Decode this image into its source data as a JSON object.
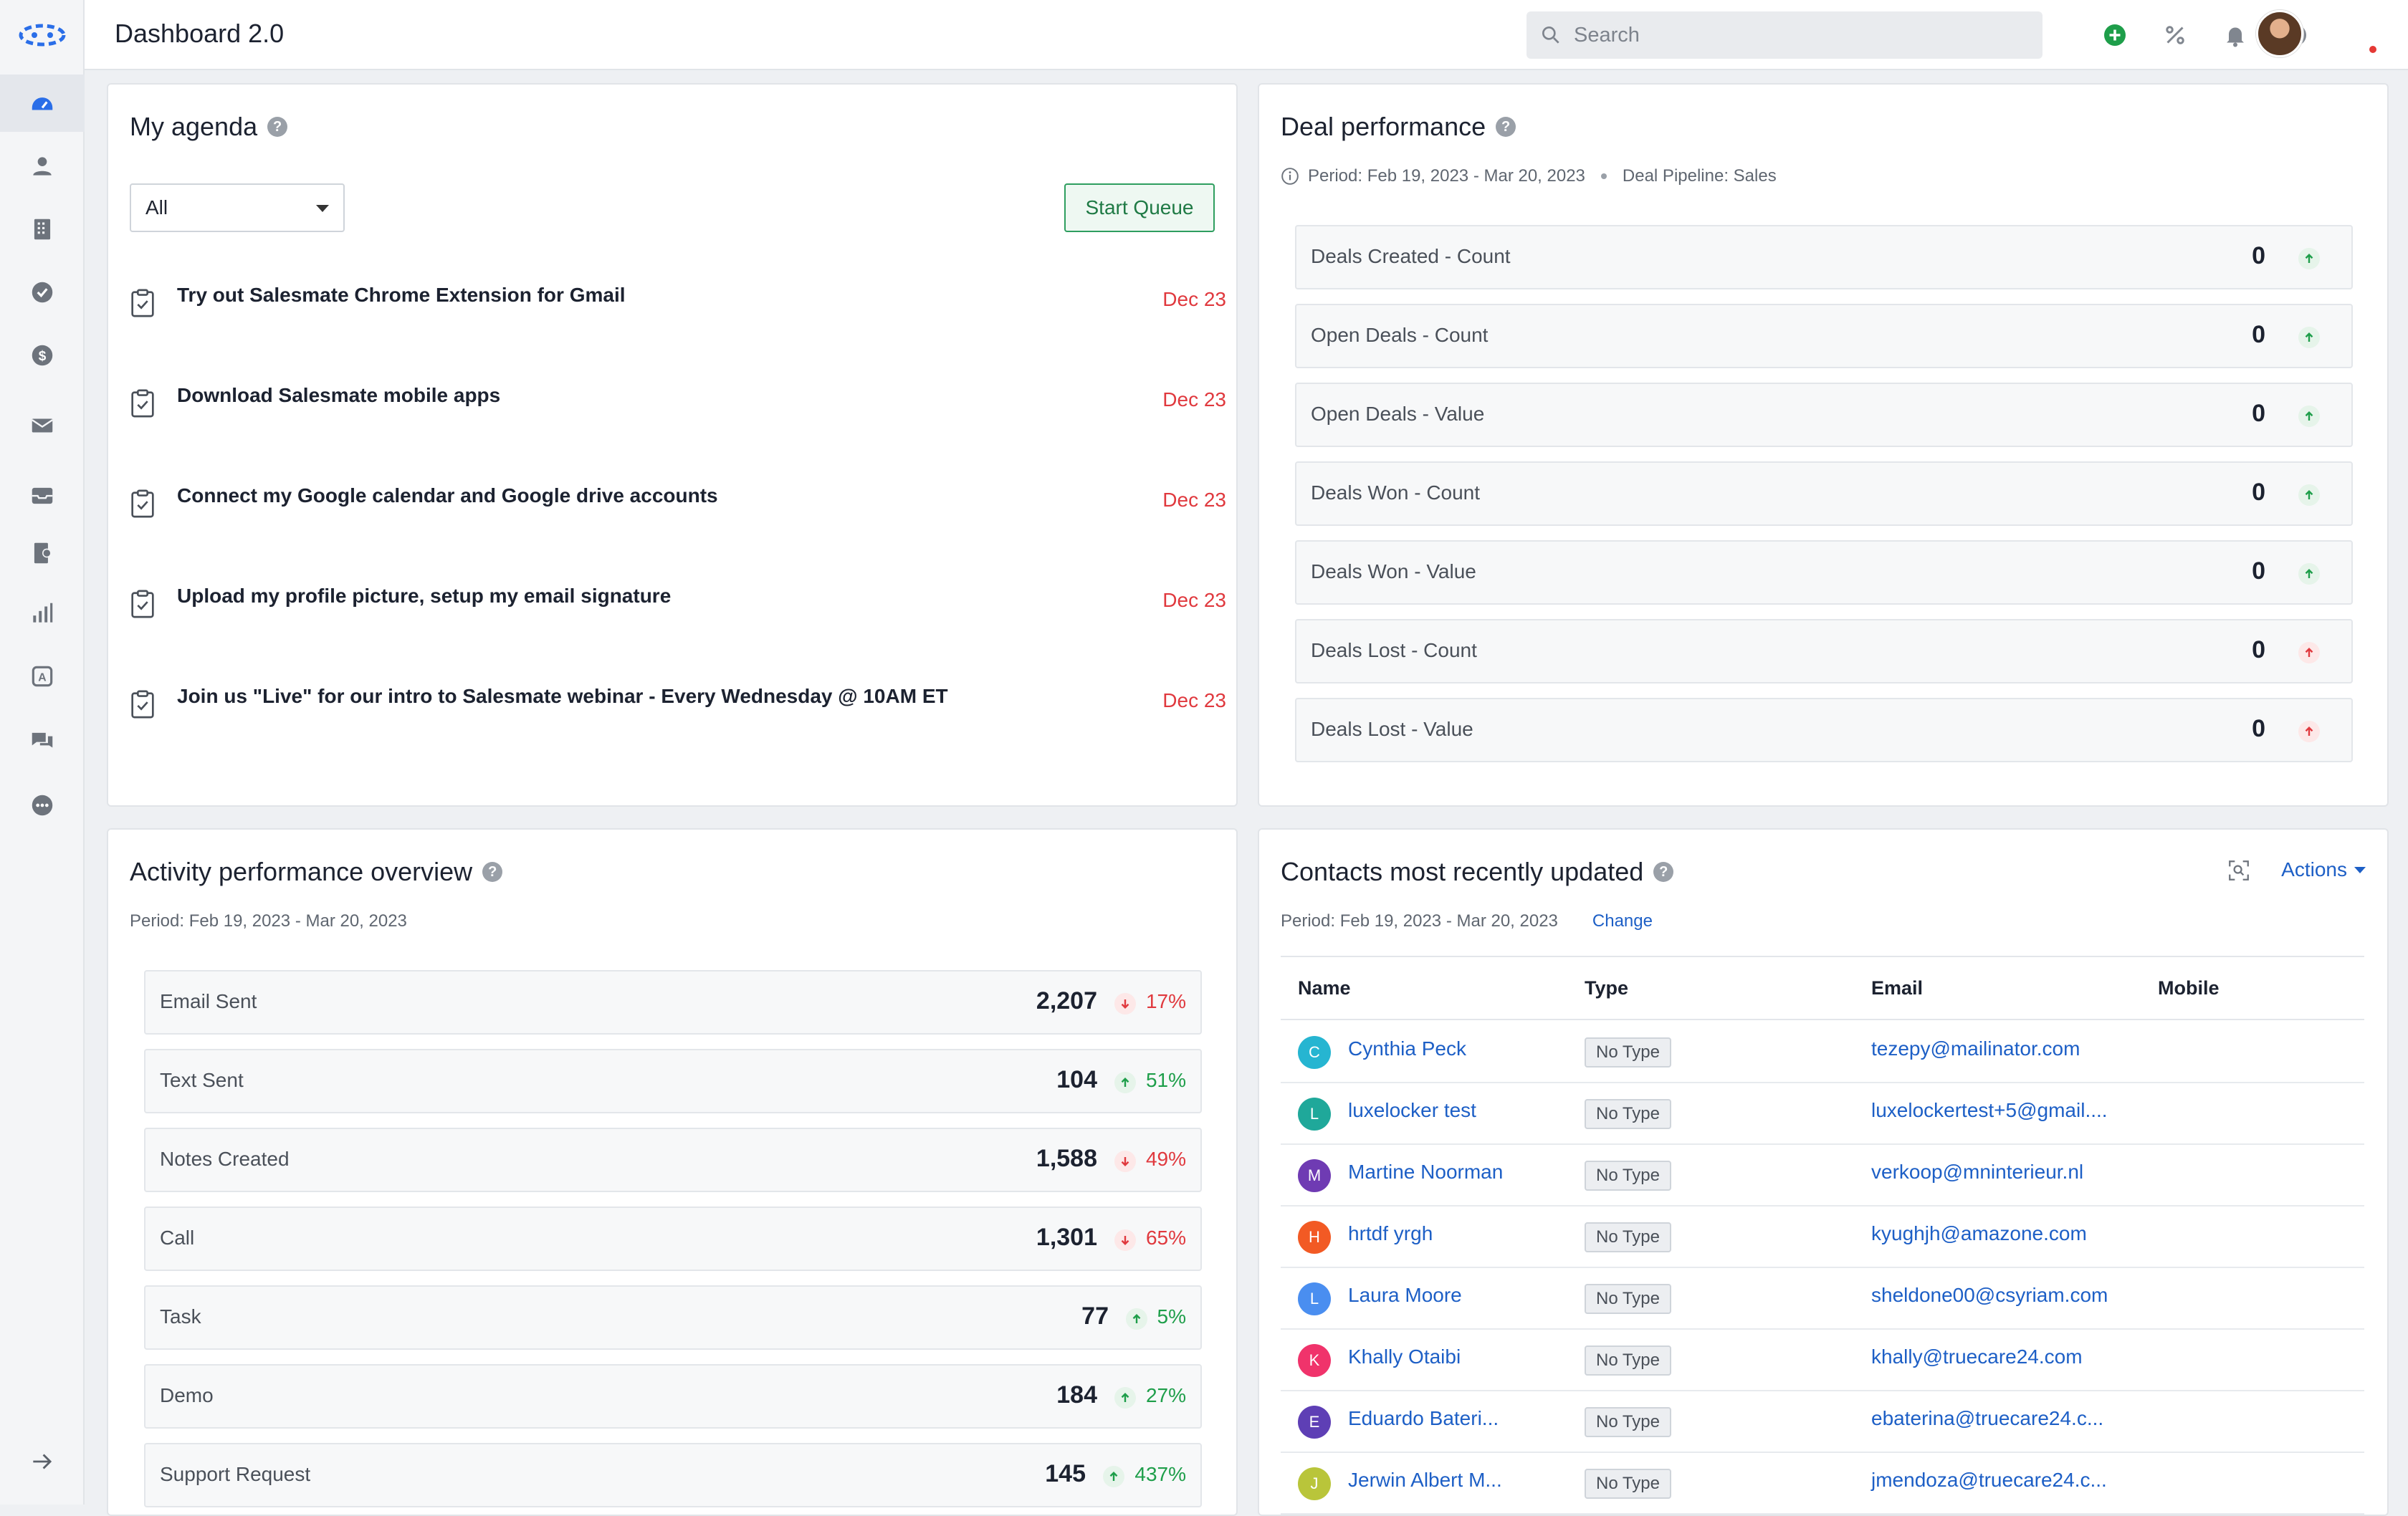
{
  "app": {
    "title": "Dashboard 2.0"
  },
  "search": {
    "placeholder": "Search"
  },
  "topbar_icons": [
    "add-icon",
    "percent-icon",
    "bell-icon",
    "help-icon"
  ],
  "sidebar": {
    "items": [
      "dashboard-icon",
      "contacts-icon",
      "companies-icon",
      "tasks-icon",
      "deals-icon",
      "email-icon",
      "inbox-icon",
      "sequences-icon",
      "reports-icon",
      "automation-icon",
      "chat-icon",
      "more-icon"
    ],
    "expand_icon": "arrow-right-icon"
  },
  "agenda": {
    "title": "My agenda",
    "filter_value": "All",
    "start_queue_label": "Start Queue",
    "tasks": [
      {
        "title": "Try out Salesmate Chrome Extension for Gmail",
        "date": "Dec 23"
      },
      {
        "title": "Download Salesmate mobile apps",
        "date": "Dec 23"
      },
      {
        "title": "Connect my Google calendar and Google drive accounts",
        "date": "Dec 23"
      },
      {
        "title": "Upload my profile picture, setup my email signature",
        "date": "Dec 23"
      },
      {
        "title": "Join us \"Live\" for our intro to Salesmate webinar - Every Wednesday @ 10AM ET",
        "date": "Dec 23"
      }
    ]
  },
  "deal_performance": {
    "title": "Deal performance",
    "period": "Period: Feb 19, 2023 - Mar 20, 2023",
    "pipeline": "Deal Pipeline: Sales",
    "rows": [
      {
        "label": "Deals Created - Count",
        "value": "0",
        "trend": "up"
      },
      {
        "label": "Open Deals - Count",
        "value": "0",
        "trend": "up"
      },
      {
        "label": "Open Deals - Value",
        "value": "0",
        "trend": "up"
      },
      {
        "label": "Deals Won - Count",
        "value": "0",
        "trend": "up"
      },
      {
        "label": "Deals Won - Value",
        "value": "0",
        "trend": "up"
      },
      {
        "label": "Deals Lost - Count",
        "value": "0",
        "trend": "up-red"
      },
      {
        "label": "Deals Lost - Value",
        "value": "0",
        "trend": "up-red"
      }
    ]
  },
  "activity": {
    "title": "Activity performance overview",
    "period": "Period: Feb 19, 2023 - Mar 20, 2023",
    "rows": [
      {
        "label": "Email Sent",
        "value": "2,207",
        "trend": "down",
        "pct": "17%"
      },
      {
        "label": "Text Sent",
        "value": "104",
        "trend": "up",
        "pct": "51%"
      },
      {
        "label": "Notes Created",
        "value": "1,588",
        "trend": "down",
        "pct": "49%"
      },
      {
        "label": "Call",
        "value": "1,301",
        "trend": "down",
        "pct": "65%"
      },
      {
        "label": "Task",
        "value": "77",
        "trend": "up",
        "pct": "5%"
      },
      {
        "label": "Demo",
        "value": "184",
        "trend": "up",
        "pct": "27%"
      },
      {
        "label": "Support Request",
        "value": "145",
        "trend": "up",
        "pct": "437%"
      }
    ]
  },
  "contacts": {
    "title": "Contacts most recently updated",
    "period": "Period: Feb 19, 2023 - Mar 20, 2023",
    "change_label": "Change",
    "actions_label": "Actions",
    "columns": [
      "Name",
      "Type",
      "Email",
      "Mobile"
    ],
    "rows": [
      {
        "initial": "C",
        "color": "#26b5d1",
        "name": "Cynthia Peck",
        "type": "No Type",
        "email": "tezepy@mailinator.com"
      },
      {
        "initial": "L",
        "color": "#1fa89a",
        "name": "luxelocker test",
        "type": "No Type",
        "email": "luxelockertest+5@gmail...."
      },
      {
        "initial": "M",
        "color": "#6f3bb3",
        "name": "Martine Noorman",
        "type": "No Type",
        "email": "verkoop@mninterieur.nl"
      },
      {
        "initial": "H",
        "color": "#f25a24",
        "name": "hrtdf yrgh",
        "type": "No Type",
        "email": "kyughjh@amazone.com"
      },
      {
        "initial": "L",
        "color": "#4a8ef0",
        "name": "Laura Moore",
        "type": "No Type",
        "email": "sheldone00@csyriam.com"
      },
      {
        "initial": "K",
        "color": "#f0336b",
        "name": "Khally Otaibi",
        "type": "No Type",
        "email": "khally@truecare24.com"
      },
      {
        "initial": "E",
        "color": "#5e3fb5",
        "name": "Eduardo Bateri...",
        "type": "No Type",
        "email": "ebaterina@truecare24.c..."
      },
      {
        "initial": "J",
        "color": "#b9c53a",
        "name": "Jerwin Albert M...",
        "type": "No Type",
        "email": "jmendoza@truecare24.c..."
      }
    ]
  },
  "colors": {
    "accent": "#1d5fc6",
    "positive": "#1e9e4a",
    "negative": "#e0393e"
  }
}
